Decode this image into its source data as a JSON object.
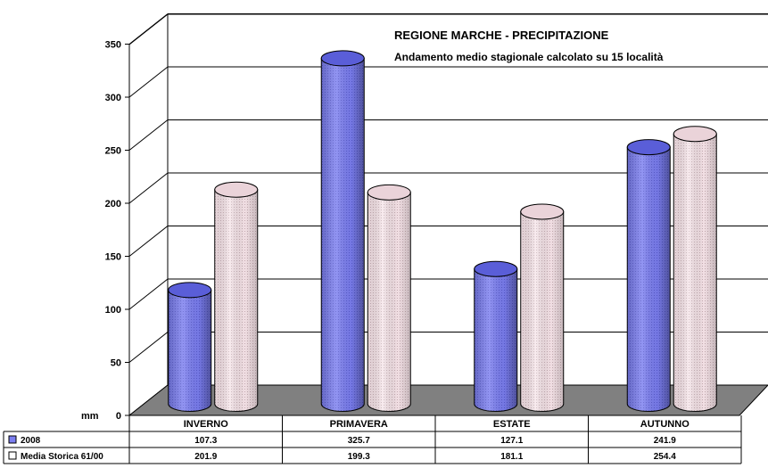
{
  "chart_data": {
    "type": "bar",
    "title": "REGIONE MARCHE - PRECIPITAZIONE",
    "subtitle": "Andamento medio stagionale calcolato su 15 località",
    "ylabel": "mm",
    "ylim": [
      0,
      350
    ],
    "yticks": [
      0,
      50,
      100,
      150,
      200,
      250,
      300,
      350
    ],
    "categories": [
      "INVERNO",
      "PRIMAVERA",
      "ESTATE",
      "AUTUNNO"
    ],
    "series": [
      {
        "name": "2008",
        "values": [
          107.3,
          325.7,
          127.1,
          241.9
        ],
        "color": "#7b7ef0"
      },
      {
        "name": "Media Storica 61/00",
        "values": [
          201.9,
          199.3,
          181.1,
          254.4
        ],
        "color": "#f5dde3"
      }
    ],
    "table_values": {
      "2008": [
        "107.3",
        "325.7",
        "127.1",
        "241.9"
      ],
      "Media Storica 61/00": [
        "201.9",
        "199.3",
        "181.1",
        "254.4"
      ]
    },
    "grid": true,
    "legend": "data-table"
  }
}
